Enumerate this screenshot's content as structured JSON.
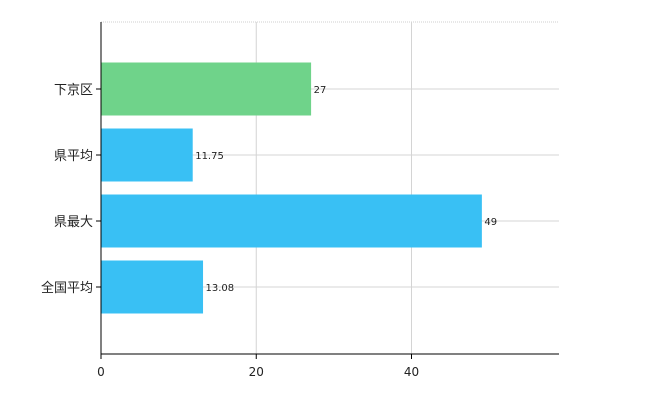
{
  "chart_data": {
    "type": "bar",
    "orientation": "horizontal",
    "categories": [
      "下京区",
      "県平均",
      "県最大",
      "全国平均"
    ],
    "values": [
      27,
      11.75,
      49,
      13.08
    ],
    "value_labels": [
      "27",
      "11.75",
      "49",
      "13.08"
    ],
    "bar_colors": [
      "#6fd38a",
      "#39c0f4",
      "#39c0f4",
      "#39c0f4"
    ],
    "xlim": [
      0,
      59
    ],
    "x_ticks": [
      0,
      20,
      40
    ],
    "x_tick_labels": [
      "0",
      "20",
      "40"
    ],
    "grid": true,
    "title": "",
    "xlabel": "",
    "ylabel": ""
  }
}
